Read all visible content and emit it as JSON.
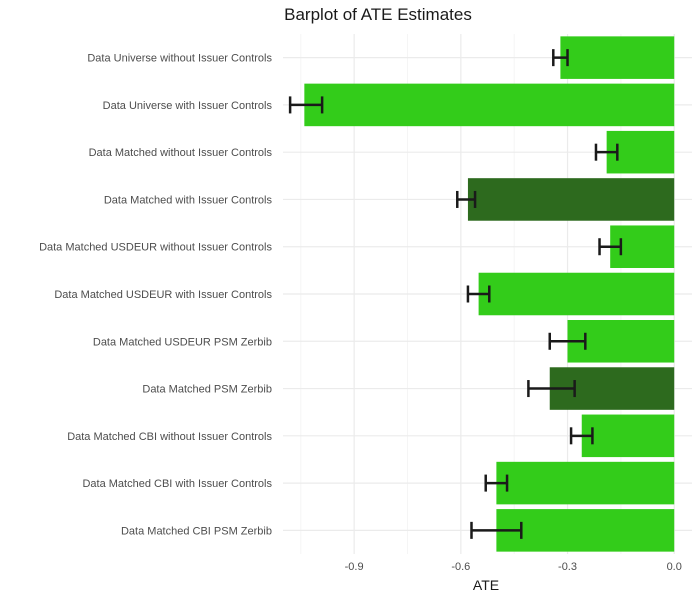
{
  "chart_data": {
    "type": "bar",
    "orientation": "horizontal",
    "title": "Barplot of ATE Estimates",
    "xlabel": "ATE",
    "ylabel": "",
    "xlim": [
      -1.1,
      0.05
    ],
    "x_ticks": [
      -0.9,
      -0.6,
      -0.3,
      0.0
    ],
    "x_tick_labels": [
      "-0.9",
      "-0.6",
      "-0.3",
      "0.0"
    ],
    "grid": true,
    "legend": "none",
    "colors": {
      "bar_default": "#33cc1a",
      "bar_highlight": "#2d6a1e",
      "error_bar": "#1a1a1a",
      "grid_major": "#ebebeb",
      "grid_minor": "#f5f5f5"
    },
    "categories": [
      "Data Universe without Issuer Controls",
      "Data Universe with Issuer Controls",
      "Data Matched without Issuer Controls",
      "Data Matched with Issuer Controls",
      "Data Matched USDEUR without Issuer Controls",
      "Data Matched USDEUR with Issuer Controls",
      "Data Matched USDEUR PSM Zerbib",
      "Data Matched PSM Zerbib",
      "Data Matched CBI without Issuer Controls",
      "Data Matched CBI with Issuer Controls",
      "Data Matched CBI PSM Zerbib"
    ],
    "values": [
      -0.32,
      -1.04,
      -0.19,
      -0.58,
      -0.18,
      -0.55,
      -0.3,
      -0.35,
      -0.26,
      -0.5,
      -0.5
    ],
    "error_low": [
      -0.34,
      -1.08,
      -0.22,
      -0.61,
      -0.21,
      -0.58,
      -0.35,
      -0.41,
      -0.29,
      -0.53,
      -0.57
    ],
    "error_high": [
      -0.3,
      -0.99,
      -0.16,
      -0.56,
      -0.15,
      -0.52,
      -0.25,
      -0.28,
      -0.23,
      -0.47,
      -0.43
    ],
    "highlight": [
      false,
      false,
      false,
      true,
      false,
      false,
      false,
      true,
      false,
      false,
      false
    ]
  }
}
